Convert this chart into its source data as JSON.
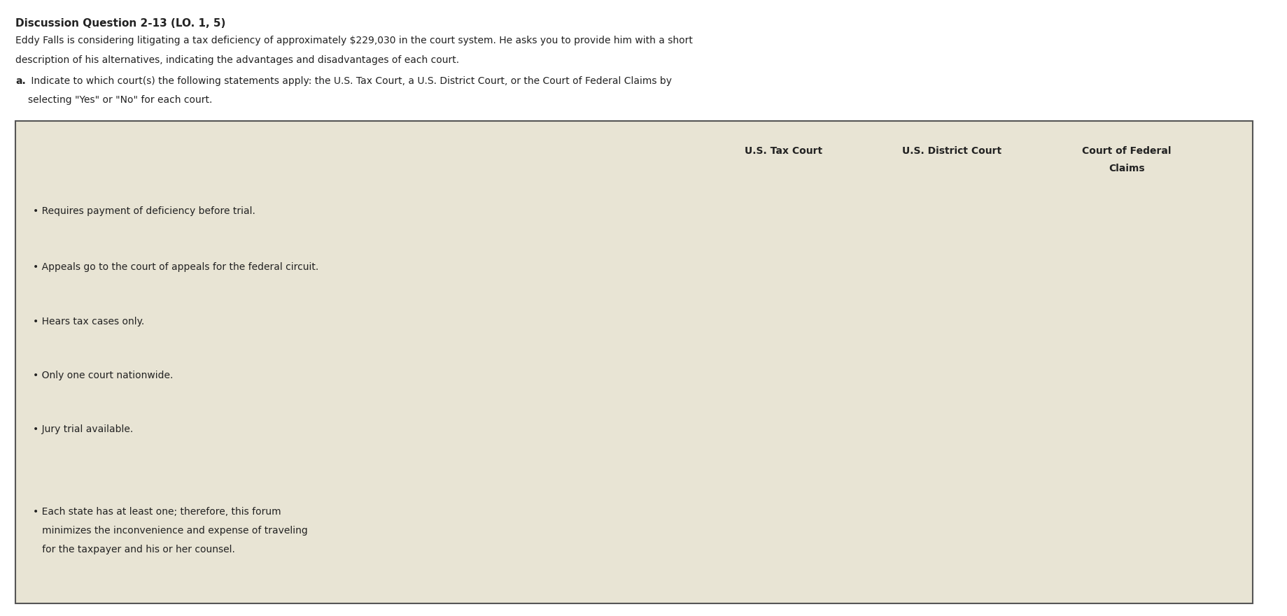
{
  "title": "Discussion Question 2-13 (LO. 1, 5)",
  "paragraph1": "Eddy Falls is considering litigating a tax deficiency of approximately $229,030 in the court system. He asks you to provide him with a short\ndescription of his alternatives, indicating the advantages and disadvantages of each court.",
  "part_label": "a.",
  "part_text": " Indicate to which court(s) the following statements apply: the U.S. Tax Court, a U.S. District Court, or the Court of Federal Claims by\nselecting \"Yes\" or \"No\" for each court.",
  "col_headers": [
    "U.S. Tax Court",
    "U.S. District Court",
    "Court of Federal\nClaims"
  ],
  "rows": [
    "Requires payment of deficiency before trial.",
    "Appeals go to the court of appeals for the federal circuit.",
    "Hears tax cases only.",
    "Only one court nationwide.",
    "Jury trial available.",
    "Each state has at least one; therefore, this forum\nminimizes the inconvenience and expense of traveling\nfor the taxpayer and his or her counsel."
  ],
  "table_bg": "#e8e4d4",
  "table_border_color": "#555555",
  "dropdown_color": "#5b9bd5",
  "dropdown_line_color": "#1a5276",
  "header_line_color": "#222222",
  "page_bg": "#ffffff",
  "text_color": "#222222",
  "title_fontsize": 11,
  "body_fontsize": 10,
  "col_header_fontsize": 10
}
